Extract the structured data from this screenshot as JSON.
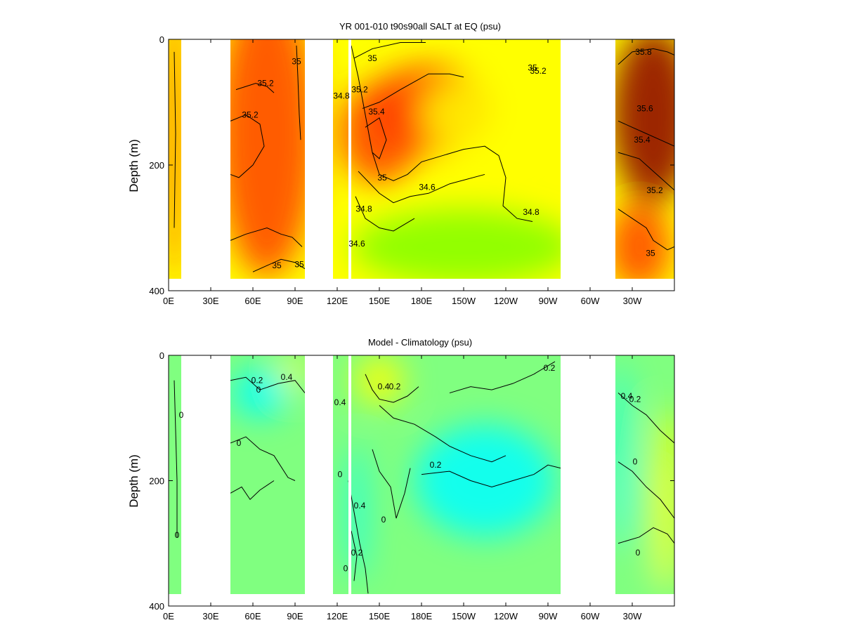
{
  "chart_data": [
    {
      "type": "heatmap",
      "title": "YR 001-010 t90s90all SALT at EQ (psu)",
      "xlabel": "",
      "ylabel": "Depth (m)",
      "xticks": [
        "0E",
        "30E",
        "60E",
        "90E",
        "120E",
        "150E",
        "180E",
        "150W",
        "120W",
        "90W",
        "60W",
        "30W"
      ],
      "xlim_deg_east": [
        0,
        360
      ],
      "yticks": [
        "0",
        "200",
        "400"
      ],
      "ylim": [
        400,
        0
      ],
      "ocean_segments_deg_east": [
        [
          0,
          9
        ],
        [
          44,
          97
        ],
        [
          117,
          128
        ],
        [
          130,
          279
        ],
        [
          318,
          360
        ]
      ],
      "colors": {
        "low": "#7fff00",
        "mid": "#ffff00",
        "high": "#ff4000",
        "max": "#8b0000"
      },
      "grid": false,
      "contour_levels": [
        34.6,
        34.8,
        35,
        35.2,
        35.4,
        35.6,
        35.8
      ],
      "contour_labels": [
        {
          "text": "35.8",
          "lon": 338,
          "depth": 20
        },
        {
          "text": "35.2",
          "lon": 263,
          "depth": 50
        },
        {
          "text": "35",
          "lon": 259,
          "depth": 45
        },
        {
          "text": "35",
          "lon": 145,
          "depth": 30
        },
        {
          "text": "35.2",
          "lon": 69,
          "depth": 70
        },
        {
          "text": "35",
          "lon": 91,
          "depth": 35
        },
        {
          "text": "34.8",
          "lon": 123,
          "depth": 90
        },
        {
          "text": "35.2",
          "lon": 136,
          "depth": 80
        },
        {
          "text": "35.4",
          "lon": 148,
          "depth": 115
        },
        {
          "text": "35.2",
          "lon": 58,
          "depth": 120
        },
        {
          "text": "35.6",
          "lon": 339,
          "depth": 110
        },
        {
          "text": "35.4",
          "lon": 337,
          "depth": 160
        },
        {
          "text": "35",
          "lon": 152,
          "depth": 220
        },
        {
          "text": "34.6",
          "lon": 184,
          "depth": 235
        },
        {
          "text": "35.2",
          "lon": 346,
          "depth": 240
        },
        {
          "text": "34.8",
          "lon": 139,
          "depth": 270
        },
        {
          "text": "34.8",
          "lon": 258,
          "depth": 275
        },
        {
          "text": "34.6",
          "lon": 134,
          "depth": 325
        },
        {
          "text": "35",
          "lon": 77,
          "depth": 360
        },
        {
          "text": "35",
          "lon": 93,
          "depth": 358
        },
        {
          "text": "35",
          "lon": 343,
          "depth": 340
        }
      ]
    },
    {
      "type": "heatmap",
      "title": "Model - Climatology (psu)",
      "xlabel": "",
      "ylabel": "Depth (m)",
      "xticks": [
        "0E",
        "30E",
        "60E",
        "90E",
        "120E",
        "150E",
        "180E",
        "150W",
        "120W",
        "90W",
        "60W",
        "30W"
      ],
      "xlim_deg_east": [
        0,
        360
      ],
      "yticks": [
        "0",
        "200",
        "400"
      ],
      "ylim": [
        400,
        0
      ],
      "ocean_segments_deg_east": [
        [
          0,
          9
        ],
        [
          44,
          97
        ],
        [
          117,
          128
        ],
        [
          130,
          279
        ],
        [
          318,
          360
        ]
      ],
      "colors": {
        "low": "#00ffff",
        "mid": "#80ff80",
        "high": "#ffff00",
        "max": "#ff4000"
      },
      "grid": false,
      "contour_levels": [
        -0.4,
        -0.2,
        0,
        0.2,
        0.4
      ],
      "contour_labels": [
        {
          "text": "0.2",
          "lon": 271,
          "depth": 20
        },
        {
          "text": "0.2",
          "lon": 63,
          "depth": 40
        },
        {
          "text": "0.4",
          "lon": 84,
          "depth": 35
        },
        {
          "text": "0.4",
          "lon": 153,
          "depth": 50
        },
        {
          "text": "0.2",
          "lon": 161,
          "depth": 50
        },
        {
          "text": "0.4",
          "lon": 122,
          "depth": 75
        },
        {
          "text": "0.4",
          "lon": 326,
          "depth": 65
        },
        {
          "text": "0.2",
          "lon": 332,
          "depth": 70
        },
        {
          "text": "0",
          "lon": 64,
          "depth": 55
        },
        {
          "text": "0",
          "lon": 9,
          "depth": 95
        },
        {
          "text": "0",
          "lon": 50,
          "depth": 140
        },
        {
          "text": "0.2",
          "lon": 190,
          "depth": 175
        },
        {
          "text": "0",
          "lon": 332,
          "depth": 170
        },
        {
          "text": "0",
          "lon": 122,
          "depth": 190
        },
        {
          "text": "0.4",
          "lon": 136,
          "depth": 240
        },
        {
          "text": "0",
          "lon": 153,
          "depth": 262
        },
        {
          "text": "0",
          "lon": 334,
          "depth": 315
        },
        {
          "text": "0",
          "lon": 6,
          "depth": 287
        },
        {
          "text": "0.2",
          "lon": 134,
          "depth": 315
        },
        {
          "text": "0",
          "lon": 126,
          "depth": 340
        }
      ]
    }
  ]
}
